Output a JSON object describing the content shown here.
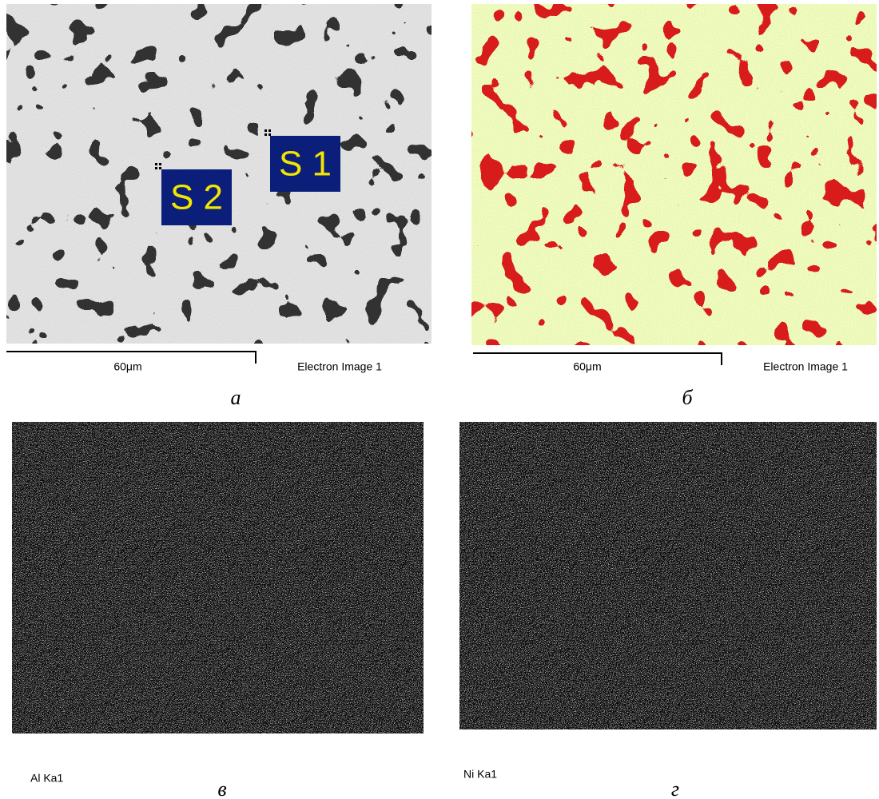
{
  "panels": [
    {
      "label": "а",
      "scale_bar": "60μm",
      "image_title": "Electron Image 1",
      "spectra": [
        "S 1",
        "S 2"
      ]
    },
    {
      "label": "б",
      "scale_bar": "60μm",
      "image_title": "Electron Image 1"
    },
    {
      "label": "в",
      "caption": "Al Ka1"
    },
    {
      "label": "г",
      "caption": "Ni Ka1"
    }
  ]
}
